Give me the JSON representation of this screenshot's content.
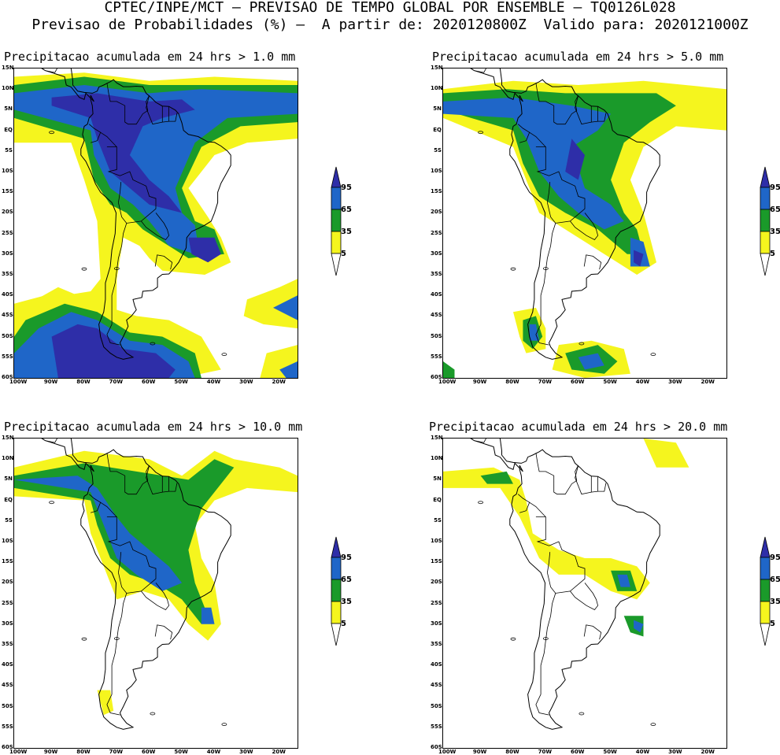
{
  "header": {
    "line1": "CPTEC/INPE/MCT – PREVISAO DE TEMPO GLOBAL POR ENSEMBLE – TQ0126L028",
    "line2": "Previsao de Probabilidades (%) –  A partir de: 2020120800Z  Valido para: 2020121000Z"
  },
  "panels": [
    {
      "title": "Precipitacao acumulada em 24 hrs > 1.0 mm"
    },
    {
      "title": "Precipitacao acumulada em 24 hrs > 5.0 mm"
    },
    {
      "title": "Precipitacao acumulada em 24 hrs > 10.0 mm"
    },
    {
      "title": "Precipitacao acumulada em 24 hrs > 20.0 mm"
    }
  ],
  "lat_labels": [
    "15N",
    "10N",
    "5N",
    "EQ",
    "5S",
    "10S",
    "15S",
    "20S",
    "25S",
    "30S",
    "35S",
    "40S",
    "45S",
    "50S",
    "55S",
    "60S"
  ],
  "lon_labels": [
    "100W",
    "90W",
    "80W",
    "70W",
    "60W",
    "50W",
    "40W",
    "30W",
    "20W"
  ],
  "colorbar": {
    "labels": [
      "95",
      "65",
      "35",
      "5"
    ],
    "colors": {
      "c95": "#2e2ea8",
      "c65": "#1f66c8",
      "c35": "#1a9a2a",
      "c5": "#f5f51e"
    }
  }
}
